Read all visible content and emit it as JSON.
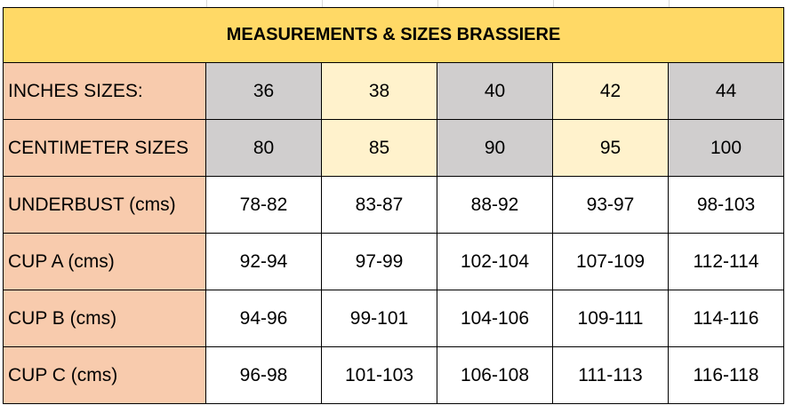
{
  "title": "MEASUREMENTS & SIZES BRASSIERE",
  "colors": {
    "title_bg": "#ffd966",
    "label_bg": "#f8cbad",
    "gray_cell": "#d0cece",
    "cream_cell": "#fff2cc",
    "grid": "#000000"
  },
  "rows": [
    {
      "label": "INCHES SIZES:",
      "values": [
        "36",
        "38",
        "40",
        "42",
        "44"
      ],
      "fill": [
        "gray",
        "cream",
        "gray",
        "cream",
        "gray"
      ]
    },
    {
      "label": "CENTIMETER SIZES",
      "values": [
        "80",
        "85",
        "90",
        "95",
        "100"
      ],
      "fill": [
        "gray",
        "cream",
        "gray",
        "cream",
        "gray"
      ]
    },
    {
      "label": "UNDERBUST (cms)",
      "values": [
        "78-82",
        "83-87",
        "88-92",
        "93-97",
        "98-103"
      ],
      "fill": [
        "white",
        "white",
        "white",
        "white",
        "white"
      ]
    },
    {
      "label": "CUP A (cms)",
      "values": [
        "92-94",
        "97-99",
        "102-104",
        "107-109",
        "112-114"
      ],
      "fill": [
        "white",
        "white",
        "white",
        "white",
        "white"
      ]
    },
    {
      "label": "CUP B (cms)",
      "values": [
        "94-96",
        "99-101",
        "104-106",
        "109-111",
        "114-116"
      ],
      "fill": [
        "white",
        "white",
        "white",
        "white",
        "white"
      ]
    },
    {
      "label": "CUP C (cms)",
      "values": [
        "96-98",
        "101-103",
        "106-108",
        "111-113",
        "116-118"
      ],
      "fill": [
        "white",
        "white",
        "white",
        "white",
        "white"
      ]
    }
  ]
}
